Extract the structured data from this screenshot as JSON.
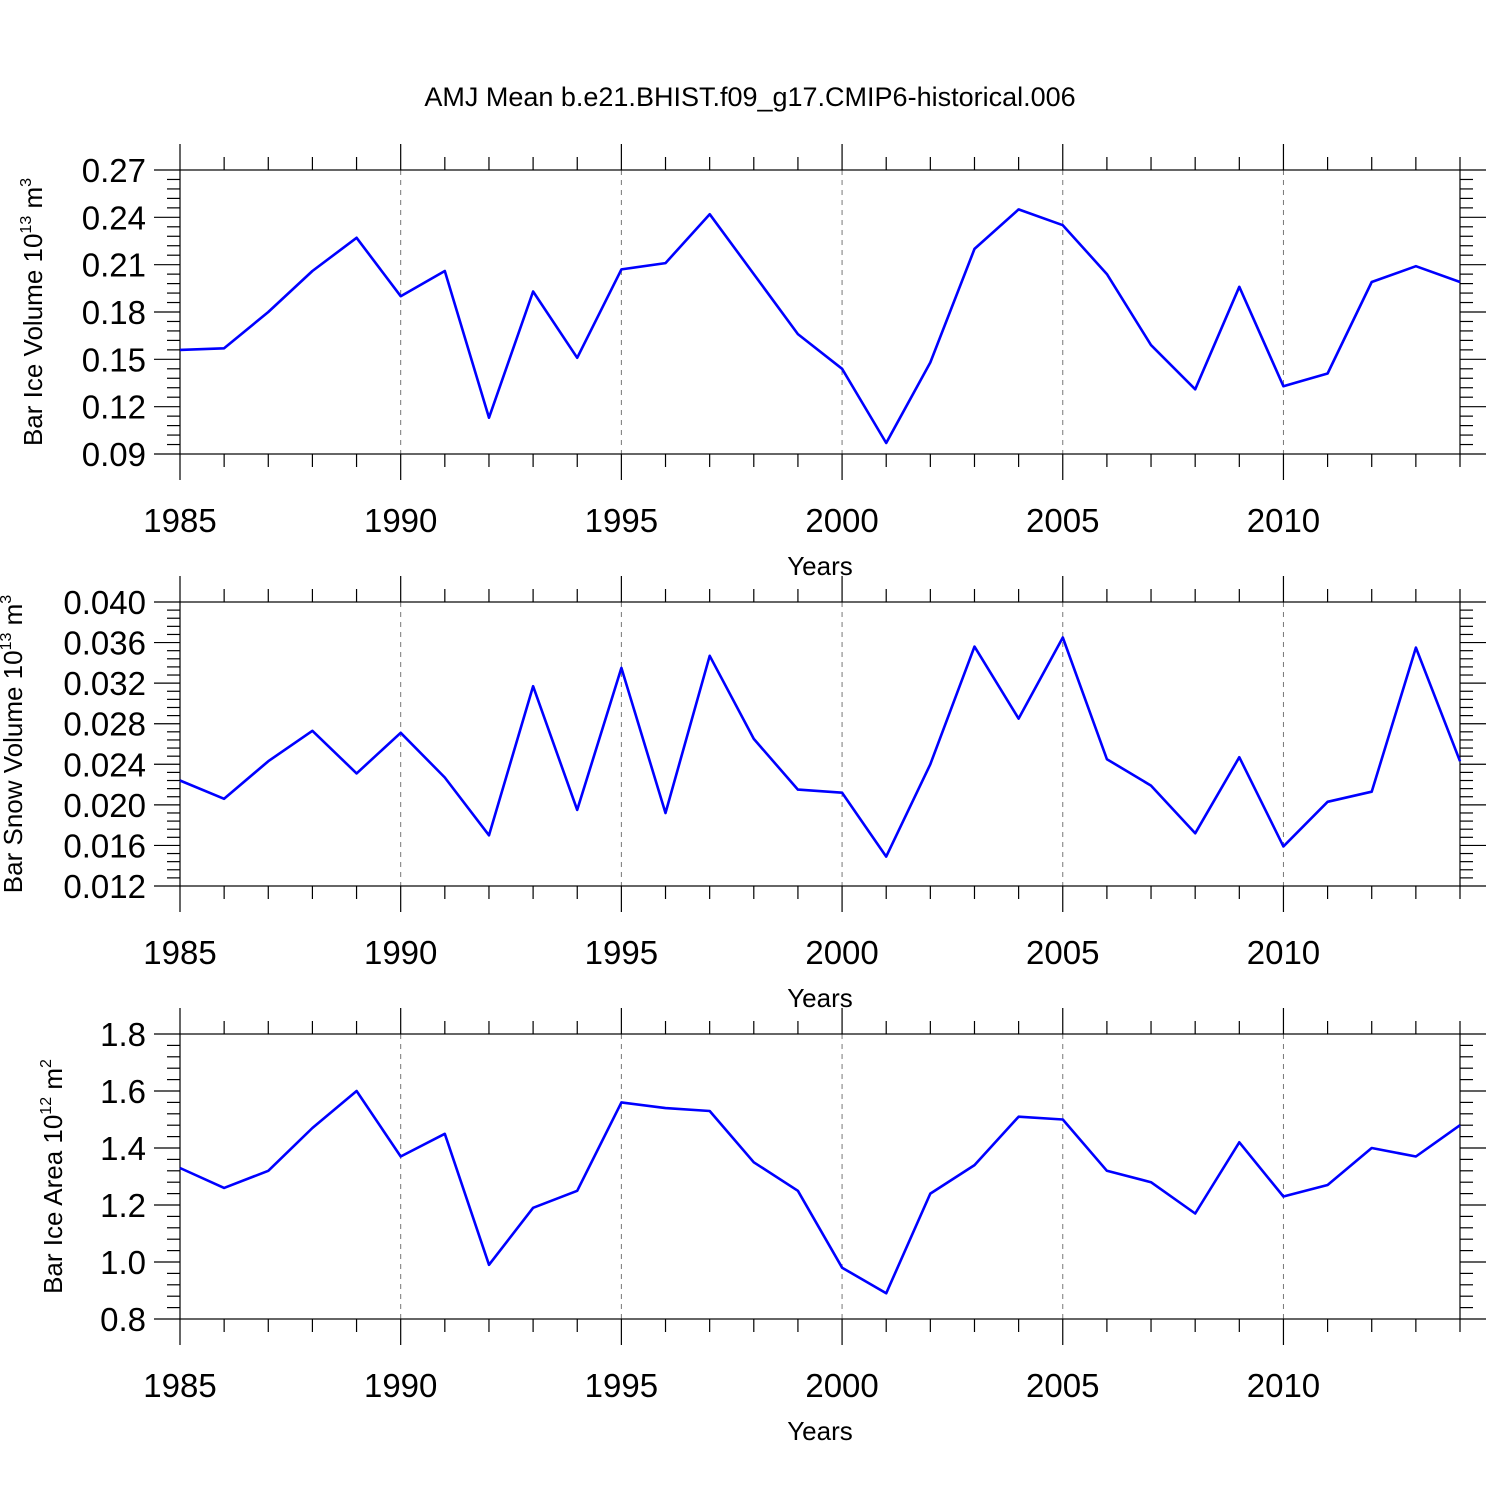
{
  "title": "AMJ Mean b.e21.BHIST.f09_g17.CMIP6-historical.006",
  "colors": {
    "line": "#0000ff",
    "grid": "#777777"
  },
  "chart_data": [
    {
      "type": "line",
      "ylabel": {
        "main": "Bar Ice Volume 10",
        "sup": "13",
        "unit": " m",
        "unit_sup": "3"
      },
      "xlabel": "Years",
      "xlim": [
        1985,
        2014
      ],
      "ylim": [
        0.09,
        0.27
      ],
      "yticks": [
        "0.09",
        "0.12",
        "0.15",
        "0.18",
        "0.21",
        "0.24",
        "0.27"
      ],
      "xticks": [
        "1985",
        "1990",
        "1995",
        "2000",
        "2005",
        "2010"
      ],
      "grid": "vertical dashed at major x ticks",
      "x": [
        1985,
        1986,
        1987,
        1988,
        1989,
        1990,
        1991,
        1992,
        1993,
        1994,
        1995,
        1996,
        1997,
        1998,
        1999,
        2000,
        2001,
        2002,
        2003,
        2004,
        2005,
        2006,
        2007,
        2008,
        2009,
        2010,
        2011,
        2012,
        2013,
        2014
      ],
      "series": [
        {
          "values": [
            0.156,
            0.157,
            0.18,
            0.206,
            0.227,
            0.19,
            0.206,
            0.113,
            0.193,
            0.151,
            0.207,
            0.211,
            0.242,
            0.204,
            0.166,
            0.144,
            0.097,
            0.148,
            0.22,
            0.245,
            0.235,
            0.204,
            0.159,
            0.131,
            0.196,
            0.133,
            0.141,
            0.199,
            0.209,
            0.199
          ]
        }
      ]
    },
    {
      "type": "line",
      "ylabel": {
        "main": "Bar Snow Volume 10",
        "sup": "13",
        "unit": " m",
        "unit_sup": "3"
      },
      "xlabel": "Years",
      "xlim": [
        1985,
        2014
      ],
      "ylim": [
        0.012,
        0.04
      ],
      "yticks": [
        "0.012",
        "0.016",
        "0.020",
        "0.024",
        "0.028",
        "0.032",
        "0.036",
        "0.040"
      ],
      "xticks": [
        "1985",
        "1990",
        "1995",
        "2000",
        "2005",
        "2010"
      ],
      "grid": "vertical dashed at major x ticks",
      "x": [
        1985,
        1986,
        1987,
        1988,
        1989,
        1990,
        1991,
        1992,
        1993,
        1994,
        1995,
        1996,
        1997,
        1998,
        1999,
        2000,
        2001,
        2002,
        2003,
        2004,
        2005,
        2006,
        2007,
        2008,
        2009,
        2010,
        2011,
        2012,
        2013,
        2014
      ],
      "series": [
        {
          "values": [
            0.0224,
            0.0206,
            0.0243,
            0.0273,
            0.0231,
            0.0271,
            0.0227,
            0.017,
            0.0317,
            0.0195,
            0.0335,
            0.0192,
            0.0347,
            0.0265,
            0.0215,
            0.0212,
            0.0149,
            0.024,
            0.0356,
            0.0285,
            0.0365,
            0.0245,
            0.0219,
            0.0172,
            0.0247,
            0.0159,
            0.0203,
            0.0213,
            0.0355,
            0.0243
          ]
        }
      ]
    },
    {
      "type": "line",
      "ylabel": {
        "main": "Bar Ice Area 10",
        "sup": "12",
        "unit": " m",
        "unit_sup": "2"
      },
      "xlabel": "Years",
      "xlim": [
        1985,
        2014
      ],
      "ylim": [
        0.8,
        1.8
      ],
      "yticks": [
        "0.8",
        "1.0",
        "1.2",
        "1.4",
        "1.6",
        "1.8"
      ],
      "xticks": [
        "1985",
        "1990",
        "1995",
        "2000",
        "2005",
        "2010"
      ],
      "grid": "vertical dashed at major x ticks",
      "x": [
        1985,
        1986,
        1987,
        1988,
        1989,
        1990,
        1991,
        1992,
        1993,
        1994,
        1995,
        1996,
        1997,
        1998,
        1999,
        2000,
        2001,
        2002,
        2003,
        2004,
        2005,
        2006,
        2007,
        2008,
        2009,
        2010,
        2011,
        2012,
        2013,
        2014
      ],
      "series": [
        {
          "values": [
            1.33,
            1.26,
            1.32,
            1.47,
            1.6,
            1.37,
            1.45,
            0.99,
            1.19,
            1.25,
            1.56,
            1.54,
            1.53,
            1.35,
            1.25,
            0.98,
            0.89,
            1.24,
            1.34,
            1.51,
            1.5,
            1.32,
            1.28,
            1.17,
            1.42,
            1.23,
            1.27,
            1.4,
            1.37,
            1.48
          ]
        }
      ]
    }
  ]
}
